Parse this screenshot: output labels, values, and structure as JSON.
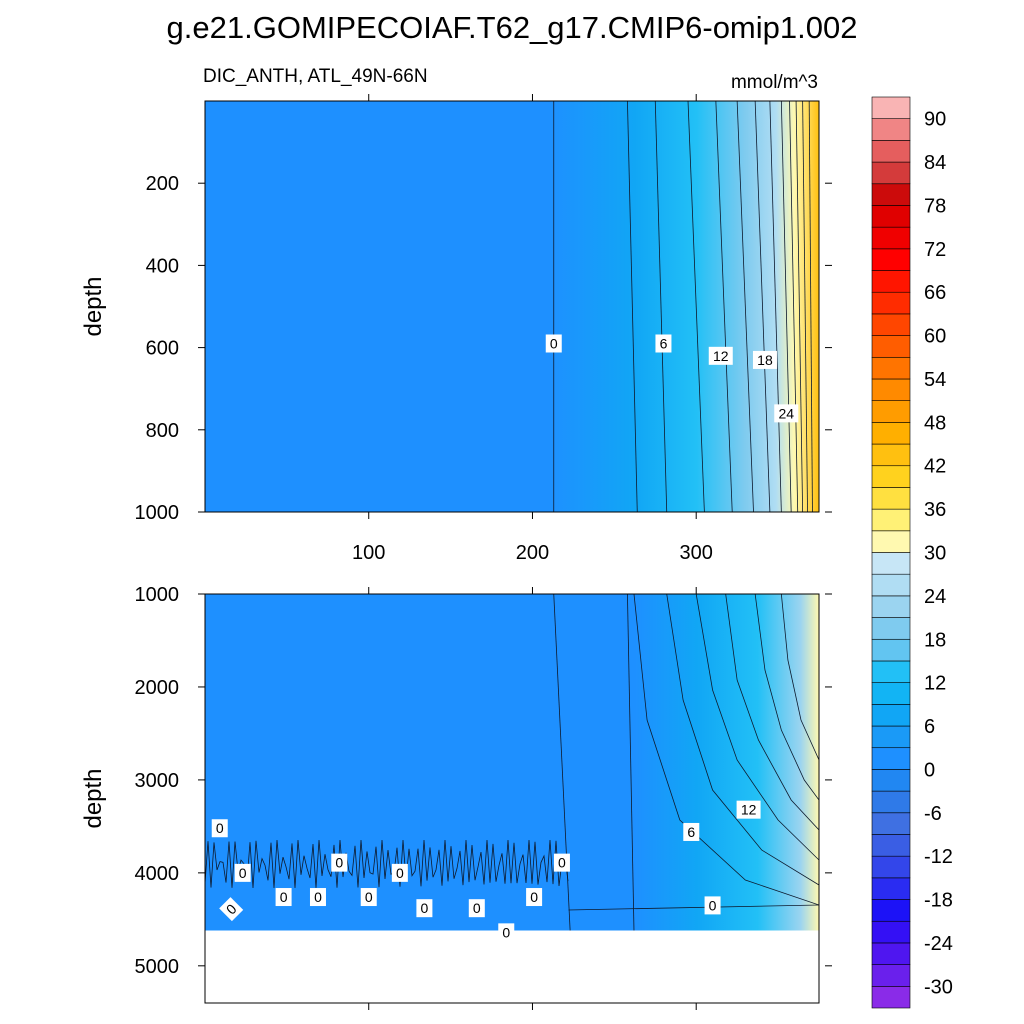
{
  "chart_data": {
    "type": "contour",
    "title": "g.e21.GOMIPECOIAF.T62_g17.CMIP6-omip1.002",
    "variable_label": "DIC_ANTH, ATL_49N-66N",
    "units": "mmol/m^3",
    "ylabel": "depth",
    "x_tick_labels": [
      "100",
      "200",
      "300"
    ],
    "x_ticks": [
      100,
      200,
      300
    ],
    "xlim": [
      0,
      375
    ],
    "panels": [
      {
        "name": "upper",
        "ylim": [
          0,
          1000
        ],
        "y_ticks": [
          200,
          400,
          600,
          800,
          1000
        ],
        "y_tick_labels": [
          "200",
          "400",
          "600",
          "800",
          "1000"
        ],
        "contour_labels": [
          {
            "text": "0",
            "x": 213,
            "depth": 590
          },
          {
            "text": "6",
            "x": 280,
            "depth": 590
          },
          {
            "text": "12",
            "x": 315,
            "depth": 620
          },
          {
            "text": "18",
            "x": 342,
            "depth": 630
          },
          {
            "text": "24",
            "x": 355,
            "depth": 760
          }
        ]
      },
      {
        "name": "lower",
        "ylim": [
          1000,
          5400
        ],
        "y_ticks": [
          1000,
          2000,
          3000,
          4000,
          5000
        ],
        "y_tick_labels": [
          "1000",
          "2000",
          "3000",
          "4000",
          "5000"
        ],
        "seafloor_depth": 4620,
        "contour_labels": [
          {
            "text": "0",
            "x": 9,
            "depth": 3520
          },
          {
            "text": "0",
            "x": 23,
            "depth": 4000
          },
          {
            "text": "0",
            "x": 16,
            "depth": 4390
          },
          {
            "text": "0",
            "x": 48,
            "depth": 4260
          },
          {
            "text": "0",
            "x": 69,
            "depth": 4260
          },
          {
            "text": "0",
            "x": 82,
            "depth": 3890
          },
          {
            "text": "0",
            "x": 100,
            "depth": 4260
          },
          {
            "text": "0",
            "x": 119,
            "depth": 4000
          },
          {
            "text": "0",
            "x": 134,
            "depth": 4380
          },
          {
            "text": "0",
            "x": 166,
            "depth": 4380
          },
          {
            "text": "0",
            "x": 184,
            "depth": 4640
          },
          {
            "text": "0",
            "x": 201,
            "depth": 4260
          },
          {
            "text": "0",
            "x": 218,
            "depth": 3890
          },
          {
            "text": "0",
            "x": 310,
            "depth": 4350
          },
          {
            "text": "6",
            "x": 297,
            "depth": 3560
          },
          {
            "text": "12",
            "x": 332,
            "depth": 3320
          }
        ]
      }
    ],
    "colorbar": {
      "levels": [
        -33,
        -30,
        -27,
        -24,
        -21,
        -18,
        -15,
        -12,
        -9,
        -6,
        -3,
        0,
        3,
        6,
        9,
        12,
        15,
        18,
        21,
        24,
        27,
        30,
        33,
        36,
        39,
        42,
        45,
        48,
        51,
        54,
        57,
        60,
        63,
        66,
        69,
        72,
        75,
        78,
        81,
        84,
        87,
        90,
        93
      ],
      "colors": [
        "#8a2be8",
        "#6a20ec",
        "#4f16f0",
        "#3410f5",
        "#1c12f7",
        "#2a2cf2",
        "#3346ea",
        "#3a5ee4",
        "#3f70e2",
        "#2f7ae8",
        "#2187f2",
        "#1e90ff",
        "#1a9af7",
        "#11a6f5",
        "#12b4f4",
        "#22c0f6",
        "#62c5f1",
        "#7fcbef",
        "#9bd4f0",
        "#b0ddf3",
        "#c7e6f6",
        "#fff9b0",
        "#fff176",
        "#ffe040",
        "#ffd21e",
        "#ffc010",
        "#ffaf00",
        "#ff9c00",
        "#ff8a00",
        "#ff7400",
        "#ff5d00",
        "#ff4600",
        "#ff2c00",
        "#ff1500",
        "#ff0000",
        "#f00000",
        "#e00000",
        "#cc0b0b",
        "#d43b3b",
        "#e55e5e",
        "#f08585",
        "#f9b4b4"
      ],
      "labels": [
        "90",
        "84",
        "78",
        "72",
        "66",
        "60",
        "54",
        "48",
        "42",
        "36",
        "30",
        "24",
        "18",
        "12",
        "6",
        "0",
        "-6",
        "-12",
        "-18",
        "-24",
        "-30"
      ]
    }
  }
}
